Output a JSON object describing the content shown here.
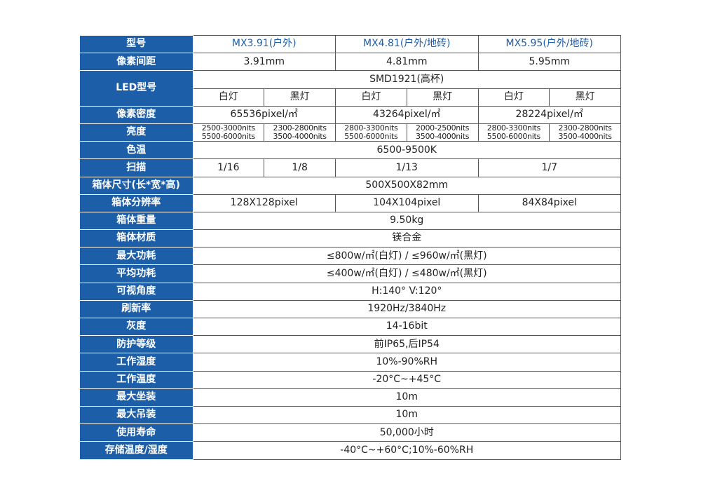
{
  "colors": {
    "label_bg": "#1d5ea8",
    "header_text": "#1d5ea8"
  },
  "rows": [
    {
      "label": "型号",
      "header": true,
      "cells": [
        {
          "text": "MX3.91(户外)",
          "span": 2
        },
        {
          "text": "MX4.81(户外/地砖)",
          "span": 2
        },
        {
          "text": "MX5.95(户外/地砖)",
          "span": 2
        }
      ]
    },
    {
      "label": "像素间距",
      "cells": [
        {
          "text": "3.91mm",
          "span": 2
        },
        {
          "text": "4.81mm",
          "span": 2
        },
        {
          "text": "5.95mm",
          "span": 2
        }
      ]
    },
    {
      "label": "LED型号",
      "label_rows": 2,
      "cells": [
        {
          "text": "SMD1921(高杯)",
          "span": 6
        }
      ]
    },
    {
      "label": null,
      "cells": [
        {
          "text": "白灯",
          "span": 1
        },
        {
          "text": "黑灯",
          "span": 1
        },
        {
          "text": "白灯",
          "span": 1
        },
        {
          "text": "黑灯",
          "span": 1
        },
        {
          "text": "白灯",
          "span": 1
        },
        {
          "text": "黑灯",
          "span": 1
        }
      ]
    },
    {
      "label": "像素密度",
      "cells": [
        {
          "text": "65536pixel/㎡",
          "span": 2
        },
        {
          "text": "43264pixel/㎡",
          "span": 2
        },
        {
          "text": "28224pixel/㎡",
          "span": 2
        }
      ]
    },
    {
      "label": "亮度",
      "small": true,
      "cells": [
        {
          "lines": [
            "2500-3000nits",
            "5500-6000nits"
          ],
          "span": 1
        },
        {
          "lines": [
            "2300-2800nits",
            "3500-4000nits"
          ],
          "span": 1
        },
        {
          "lines": [
            "2800-3300nits",
            "5500-6000nits"
          ],
          "span": 1
        },
        {
          "lines": [
            "2000-2500nits",
            "3500-4000nits"
          ],
          "span": 1
        },
        {
          "lines": [
            "2800-3300nits",
            "5500-6000nits"
          ],
          "span": 1
        },
        {
          "lines": [
            "2300-2800nits",
            "3500-4000nits"
          ],
          "span": 1
        }
      ]
    },
    {
      "label": "色温",
      "cells": [
        {
          "text": "6500-9500K",
          "span": 6
        }
      ]
    },
    {
      "label": "扫描",
      "cells": [
        {
          "text": "1/16",
          "span": 1
        },
        {
          "text": "1/8",
          "span": 1
        },
        {
          "text": "1/13",
          "span": 2
        },
        {
          "text": "1/7",
          "span": 2
        }
      ]
    },
    {
      "label": "箱体尺寸(长*宽*高)",
      "cells": [
        {
          "text": "500X500X82mm",
          "span": 6
        }
      ]
    },
    {
      "label": "箱体分辨率",
      "cells": [
        {
          "text": "128X128pixel",
          "span": 2
        },
        {
          "text": "104X104pixel",
          "span": 2
        },
        {
          "text": "84X84pixel",
          "span": 2
        }
      ]
    },
    {
      "label": "箱体重量",
      "cells": [
        {
          "text": "9.50kg",
          "span": 6
        }
      ]
    },
    {
      "label": "箱体材质",
      "cells": [
        {
          "text": "镁合金",
          "span": 6
        }
      ]
    },
    {
      "label": "最大功耗",
      "cells": [
        {
          "text": "≤800w/㎡(白灯) / ≤960w/㎡(黑灯)",
          "span": 6
        }
      ]
    },
    {
      "label": "平均功耗",
      "cells": [
        {
          "text": "≤400w/㎡(白灯) / ≤480w/㎡(黑灯)",
          "span": 6
        }
      ]
    },
    {
      "label": "可视角度",
      "cells": [
        {
          "text": "H:140° V:120°",
          "span": 6
        }
      ]
    },
    {
      "label": "刷新率",
      "cells": [
        {
          "text": "1920Hz/3840Hz",
          "span": 6
        }
      ]
    },
    {
      "label": "灰度",
      "cells": [
        {
          "text": "14-16bit",
          "span": 6
        }
      ]
    },
    {
      "label": "防护等级",
      "cells": [
        {
          "text": "前IP65,后IP54",
          "span": 6
        }
      ]
    },
    {
      "label": "工作湿度",
      "cells": [
        {
          "text": "10%-90%RH",
          "span": 6
        }
      ]
    },
    {
      "label": "工作温度",
      "cells": [
        {
          "text": "-20°C~+45°C",
          "span": 6
        }
      ]
    },
    {
      "label": "最大坐装",
      "cells": [
        {
          "text": "10m",
          "span": 6
        }
      ]
    },
    {
      "label": "最大吊装",
      "cells": [
        {
          "text": "10m",
          "span": 6
        }
      ]
    },
    {
      "label": "使用寿命",
      "cells": [
        {
          "text": "50,000小时",
          "span": 6
        }
      ]
    },
    {
      "label": "存储温度/湿度",
      "cells": [
        {
          "text": "-40°C~+60°C;10%-60%RH",
          "span": 6
        }
      ]
    }
  ]
}
